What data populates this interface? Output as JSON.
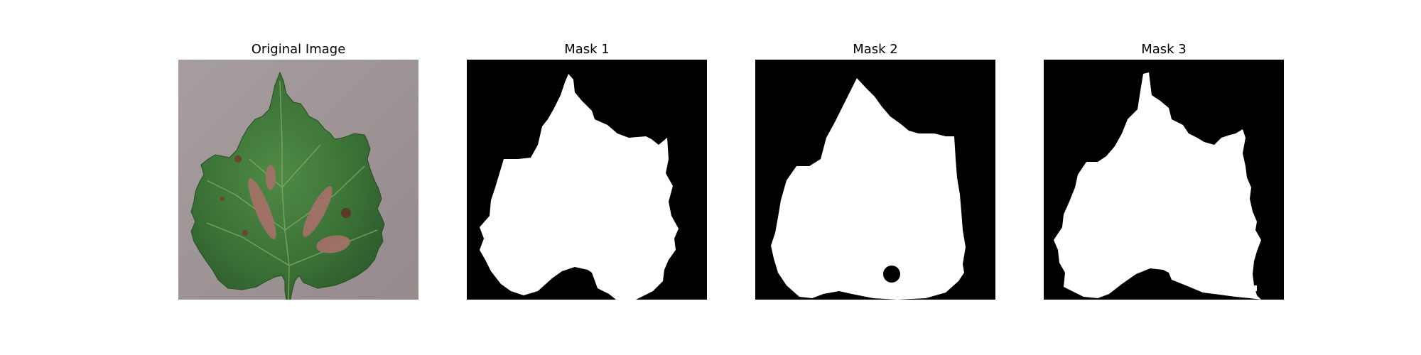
{
  "panels": [
    {
      "title": "Original Image"
    },
    {
      "title": "Mask 1"
    },
    {
      "title": "Mask 2"
    },
    {
      "title": "Mask 3"
    }
  ],
  "colors": {
    "background": "#ffffff",
    "mask_background": "#000000",
    "mask_foreground": "#ffffff",
    "photo_background": "#9e9596",
    "leaf_green": "#3f7a3a",
    "leaf_dark_green": "#2f5d2f",
    "lesion_brown": "#a8706a"
  }
}
